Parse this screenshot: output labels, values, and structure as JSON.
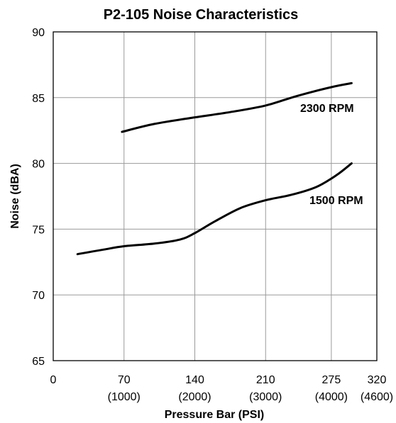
{
  "chart_data": {
    "type": "line",
    "title": "P2-105 Noise Characteristics",
    "xlabel": "Pressure Bar (PSI)",
    "ylabel": "Noise (dBA)",
    "xlim": [
      0,
      320
    ],
    "ylim": [
      65,
      90
    ],
    "grid": true,
    "x_ticks": [
      {
        "value": 0,
        "label": "0",
        "sublabel": ""
      },
      {
        "value": 70,
        "label": "70",
        "sublabel": "(1000)"
      },
      {
        "value": 140,
        "label": "140",
        "sublabel": "(2000)"
      },
      {
        "value": 210,
        "label": "210",
        "sublabel": "(3000)"
      },
      {
        "value": 275,
        "label": "275",
        "sublabel": "(4000)"
      },
      {
        "value": 320,
        "label": "320",
        "sublabel": "(4600)"
      }
    ],
    "y_ticks": [
      {
        "value": 65,
        "label": "65"
      },
      {
        "value": 70,
        "label": "70"
      },
      {
        "value": 75,
        "label": "75"
      },
      {
        "value": 80,
        "label": "80"
      },
      {
        "value": 85,
        "label": "85"
      },
      {
        "value": 90,
        "label": "90"
      }
    ],
    "series": [
      {
        "name": "2300 RPM",
        "x": [
          68,
          100,
          140,
          175,
          210,
          240,
          275,
          295
        ],
        "y": [
          82.4,
          83.0,
          83.5,
          83.9,
          84.4,
          85.1,
          85.8,
          86.1
        ]
      },
      {
        "name": "1500 RPM",
        "x": [
          24,
          50,
          70,
          100,
          125,
          140,
          160,
          185,
          210,
          235,
          260,
          280,
          295
        ],
        "y": [
          73.1,
          73.45,
          73.7,
          73.9,
          74.2,
          74.7,
          75.6,
          76.6,
          77.2,
          77.6,
          78.2,
          79.1,
          80.0
        ]
      }
    ]
  }
}
